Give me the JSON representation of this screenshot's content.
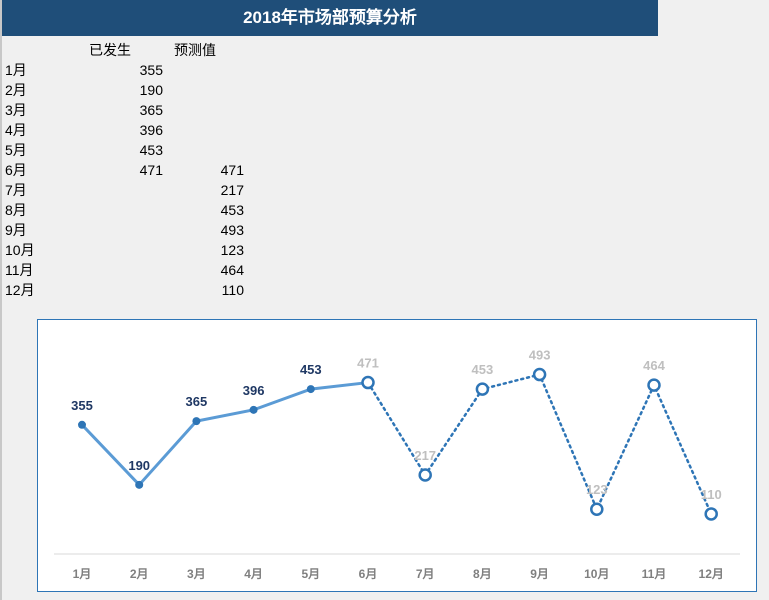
{
  "title": "2018年市场部预算分析",
  "table": {
    "headers": [
      "已发生",
      "预测值"
    ],
    "rows": [
      {
        "month": "1月",
        "actual": "355",
        "forecast": ""
      },
      {
        "month": "2月",
        "actual": "190",
        "forecast": ""
      },
      {
        "month": "3月",
        "actual": "365",
        "forecast": ""
      },
      {
        "month": "4月",
        "actual": "396",
        "forecast": ""
      },
      {
        "month": "5月",
        "actual": "453",
        "forecast": ""
      },
      {
        "month": "6月",
        "actual": "471",
        "forecast": "471"
      },
      {
        "month": "7月",
        "actual": "",
        "forecast": "217"
      },
      {
        "month": "8月",
        "actual": "",
        "forecast": "453"
      },
      {
        "month": "9月",
        "actual": "",
        "forecast": "493"
      },
      {
        "month": "10月",
        "actual": "",
        "forecast": "123"
      },
      {
        "month": "11月",
        "actual": "",
        "forecast": "464"
      },
      {
        "month": "12月",
        "actual": "",
        "forecast": "110"
      }
    ]
  },
  "chart_data": {
    "type": "line",
    "categories": [
      "1月",
      "2月",
      "3月",
      "4月",
      "5月",
      "6月",
      "7月",
      "8月",
      "9月",
      "10月",
      "11月",
      "12月"
    ],
    "series": [
      {
        "name": "已发生",
        "values": [
          355,
          190,
          365,
          396,
          453,
          471,
          null,
          null,
          null,
          null,
          null,
          null
        ],
        "color": "#5b9bd5",
        "style": "solid",
        "label_color": "#1f3864"
      },
      {
        "name": "预测值",
        "values": [
          null,
          null,
          null,
          null,
          null,
          471,
          217,
          453,
          493,
          123,
          464,
          110
        ],
        "color": "#2e75b6",
        "style": "dotted",
        "label_color": "#bfbfbf"
      }
    ],
    "ylim": [
      0,
      600
    ],
    "grid": false,
    "legend": "none"
  }
}
